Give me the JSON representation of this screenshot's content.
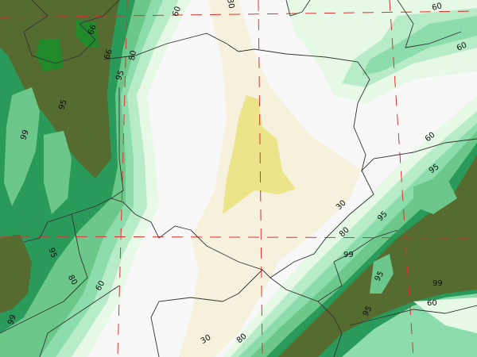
{
  "map": {
    "colors": {
      "background": "#f8f8f8",
      "lt30": "#f5f1dc",
      "lt10": "#ece488",
      "c60": "#e6f8e6",
      "c70": "#b8ecc8",
      "c80": "#8cdcac",
      "c85": "#6cc88a",
      "c90": "#3cae6c",
      "c95": "#2a9a5a",
      "c97": "#218a2a",
      "c99": "#556b30",
      "border": "#333333",
      "grid": "#e03030"
    },
    "contour_labels": [
      "60",
      "30",
      "60",
      "60",
      "60",
      "95",
      "30",
      "95",
      "80",
      "99",
      "95",
      "99",
      "60",
      "95",
      "80",
      "30",
      "60",
      "80",
      "95",
      "99",
      "99",
      "95",
      "95",
      "80",
      "99",
      "99"
    ]
  }
}
